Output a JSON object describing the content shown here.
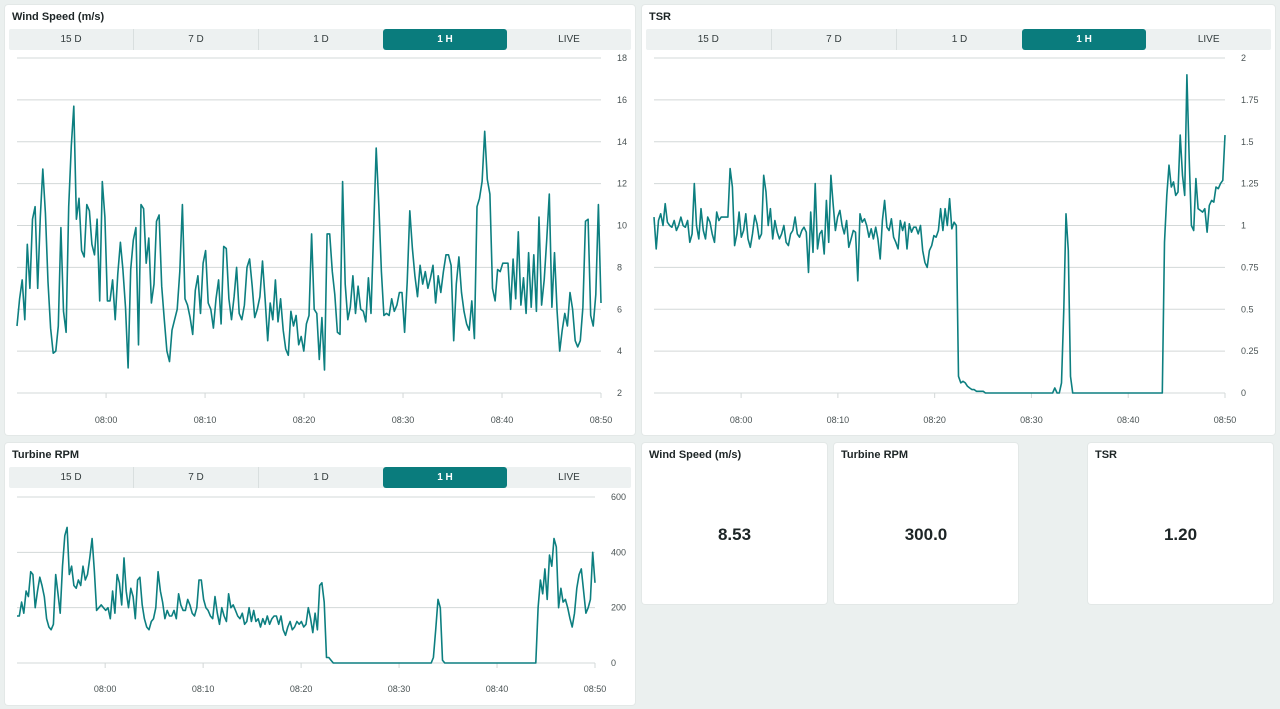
{
  "tabs": [
    "15 D",
    "7 D",
    "1 D",
    "1 H",
    "LIVE"
  ],
  "active_tab": "1 H",
  "charts": {
    "wind": {
      "title": "Wind Speed (m/s)",
      "chart_data": {
        "type": "line",
        "title": "Wind Speed (m/s)",
        "x_range_minutes": [
          -9,
          50
        ],
        "x_ticks": [
          "08:00",
          "08:10",
          "08:20",
          "08:30",
          "08:40",
          "08:50"
        ],
        "ylim": [
          2,
          18
        ],
        "y_ticks": [
          2,
          4,
          6,
          8,
          10,
          12,
          14,
          16,
          18
        ],
        "grid": true,
        "series": [
          {
            "values": [
              5.2,
              6.5,
              7.4,
              5.5,
              9.1,
              7.0,
              10.3,
              10.9,
              7.0,
              10.4,
              12.7,
              10.6,
              7.3,
              5.1,
              3.9,
              4.0,
              5.2,
              9.9,
              5.9,
              4.9,
              10.9,
              13.8,
              15.7,
              10.3,
              11.3,
              8.8,
              8.5,
              11.0,
              10.7,
              9.1,
              8.6,
              10.3,
              6.4,
              12.1,
              10.4,
              6.4,
              6.4,
              7.4,
              5.5,
              7.7,
              9.2,
              7.9,
              6.1,
              3.2,
              7.9,
              9.3,
              9.9,
              4.3,
              11.0,
              10.8,
              8.2,
              9.4,
              6.3,
              7.2,
              10.2,
              10.5,
              7.1,
              5.5,
              4.0,
              3.5,
              5.0,
              5.5,
              6.0,
              7.8,
              11.0,
              6.5,
              6.2,
              5.6,
              4.8,
              6.9,
              7.6,
              5.8,
              8.2,
              8.8,
              6.3,
              6.0,
              5.1,
              6.5,
              7.4,
              5.3,
              9.0,
              8.9,
              6.5,
              5.5,
              6.6,
              8.0,
              5.8,
              5.5,
              6.2,
              8.0,
              8.4,
              7.1,
              5.6,
              6.0,
              6.6,
              8.3,
              6.5,
              4.5,
              6.3,
              5.5,
              7.4,
              5.4,
              6.5,
              5.0,
              4.1,
              3.8,
              5.9,
              5.2,
              5.7,
              4.3,
              4.7,
              4.0,
              5.3,
              5.7,
              9.6,
              6.0,
              5.8,
              3.6,
              5.6,
              3.1,
              9.6,
              9.6,
              7.8,
              6.7,
              4.9,
              4.8,
              12.1,
              7.2,
              5.5,
              6.1,
              7.6,
              5.8,
              7.1,
              6.0,
              5.9,
              5.4,
              7.5,
              5.8,
              9.7,
              13.7,
              11.0,
              7.8,
              5.7,
              5.8,
              5.7,
              6.5,
              5.9,
              6.2,
              6.8,
              6.8,
              4.9,
              7.3,
              10.7,
              8.9,
              7.6,
              6.6,
              8.1,
              7.2,
              7.8,
              7.0,
              7.5,
              8.1,
              6.3,
              7.6,
              6.8,
              7.8,
              8.6,
              8.6,
              8.1,
              4.5,
              7.2,
              8.5,
              6.8,
              5.9,
              5.3,
              5.0,
              6.4,
              4.6,
              10.9,
              11.3,
              12.1,
              14.5,
              12.2,
              11.5,
              7.0,
              6.4,
              7.9,
              7.8,
              8.2,
              8.2,
              8.2,
              6.0,
              8.4,
              6.5,
              9.7,
              6.2,
              7.5,
              5.8,
              8.7,
              6.1,
              8.6,
              5.9,
              10.4,
              6.2,
              7.4,
              9.3,
              11.5,
              6.1,
              8.7,
              5.9,
              4.0,
              5.0,
              5.8,
              5.2,
              6.8,
              6.0,
              4.5,
              4.2,
              4.5,
              6.1,
              10.2,
              10.3,
              5.7,
              5.2,
              6.7,
              11.0,
              6.3
            ]
          }
        ]
      }
    },
    "tsr": {
      "title": "TSR",
      "chart_data": {
        "type": "line",
        "title": "TSR",
        "x_range_minutes": [
          -9,
          50
        ],
        "x_ticks": [
          "08:00",
          "08:10",
          "08:20",
          "08:30",
          "08:40",
          "08:50"
        ],
        "ylim": [
          0,
          2
        ],
        "y_ticks": [
          "0",
          "0.25",
          "0.5",
          "0.75",
          "1",
          "1.25",
          "1.5",
          "1.75",
          "2"
        ],
        "grid": true,
        "series": [
          {
            "values": [
              1.05,
              0.86,
              1.03,
              1.07,
              1.0,
              1.13,
              1.02,
              1.0,
              0.99,
              1.03,
              0.97,
              1.0,
              1.05,
              1.0,
              0.99,
              1.03,
              0.9,
              0.95,
              1.25,
              1.0,
              0.92,
              1.1,
              0.97,
              0.92,
              1.05,
              1.02,
              0.95,
              0.9,
              1.08,
              1.03,
              1.05,
              1.05,
              1.05,
              1.05,
              1.34,
              1.23,
              0.88,
              0.95,
              1.08,
              0.93,
              0.97,
              1.07,
              0.92,
              0.87,
              0.95,
              1.06,
              1.01,
              0.92,
              0.95,
              1.3,
              1.2,
              1.0,
              1.1,
              0.92,
              1.03,
              0.96,
              0.92,
              0.95,
              1.0,
              0.9,
              0.88,
              0.95,
              0.97,
              1.05,
              0.95,
              0.93,
              0.97,
              0.99,
              0.96,
              0.72,
              1.08,
              0.84,
              1.25,
              0.86,
              0.95,
              0.97,
              0.83,
              1.15,
              0.9,
              1.3,
              1.13,
              0.97,
              1.05,
              1.09,
              1.0,
              0.95,
              1.03,
              0.87,
              0.92,
              0.97,
              0.96,
              0.67,
              1.07,
              1.02,
              1.04,
              1.0,
              0.93,
              0.98,
              0.92,
              0.99,
              0.92,
              0.8,
              1.03,
              1.15,
              0.99,
              0.97,
              1.04,
              0.93,
              0.9,
              0.86,
              1.03,
              0.97,
              1.02,
              0.86,
              1.01,
              0.96,
              0.99,
              0.99,
              0.95,
              1.0,
              0.85,
              0.78,
              0.75,
              0.85,
              0.88,
              0.94,
              0.93,
              0.97,
              1.1,
              0.97,
              1.1,
              1.0,
              1.16,
              0.98,
              1.02,
              1.0,
              0.1,
              0.06,
              0.07,
              0.06,
              0.04,
              0.03,
              0.02,
              0.02,
              0.01,
              0.01,
              0.01,
              0.01,
              0.0,
              0.0,
              0.0,
              0.0,
              0.0,
              0.0,
              0.0,
              0.0,
              0.0,
              0.0,
              0.0,
              0.0,
              0.0,
              0.0,
              0.0,
              0.0,
              0.0,
              0.0,
              0.0,
              0.0,
              0.0,
              0.0,
              0.0,
              0.0,
              0.0,
              0.0,
              0.0,
              0.0,
              0.0,
              0.0,
              0.0,
              0.03,
              0.0,
              0.0,
              0.06,
              0.5,
              1.07,
              0.85,
              0.1,
              0.0,
              0.0,
              0.0,
              0.0,
              0.0,
              0.0,
              0.0,
              0.0,
              0.0,
              0.0,
              0.0,
              0.0,
              0.0,
              0.0,
              0.0,
              0.0,
              0.0,
              0.0,
              0.0,
              0.0,
              0.0,
              0.0,
              0.0,
              0.0,
              0.0,
              0.0,
              0.0,
              0.0,
              0.0,
              0.0,
              0.0,
              0.0,
              0.0,
              0.0,
              0.0,
              0.0,
              0.0,
              0.0,
              0.0,
              0.0,
              0.0,
              0.9,
              1.18,
              1.36,
              1.23,
              1.26,
              1.18,
              1.2,
              1.54,
              1.3,
              1.18,
              1.9,
              1.4,
              1.0,
              0.97,
              1.28,
              1.1,
              1.09,
              1.08,
              1.1,
              0.96,
              1.12,
              1.15,
              1.14,
              1.23,
              1.22,
              1.25,
              1.27,
              1.54
            ]
          }
        ]
      }
    },
    "rpm": {
      "title": "Turbine RPM",
      "chart_data": {
        "type": "line",
        "title": "Turbine RPM",
        "x_range_minutes": [
          -9,
          50
        ],
        "x_ticks": [
          "08:00",
          "08:10",
          "08:20",
          "08:30",
          "08:40",
          "08:50"
        ],
        "ylim": [
          0,
          600
        ],
        "y_ticks": [
          0,
          200,
          400,
          600
        ],
        "grid": true,
        "series": [
          {
            "values": [
              170,
              170,
              220,
              180,
              260,
              240,
              330,
              320,
              200,
              260,
              310,
              280,
              240,
              160,
              130,
              120,
              140,
              320,
              250,
              180,
              350,
              460,
              490,
              320,
              350,
              280,
              270,
              300,
              280,
              350,
              300,
              320,
              380,
              450,
              330,
              190,
              200,
              210,
              200,
              190,
              200,
              160,
              260,
              180,
              320,
              290,
              210,
              380,
              260,
              200,
              270,
              240,
              160,
              300,
              310,
              210,
              160,
              130,
              120,
              150,
              160,
              200,
              330,
              260,
              220,
              160,
              190,
              170,
              170,
              190,
              160,
              250,
              210,
              190,
              190,
              230,
              210,
              180,
              170,
              200,
              300,
              300,
              230,
              200,
              190,
              170,
              160,
              240,
              180,
              140,
              200,
              170,
              150,
              250,
              200,
              210,
              190,
              170,
              160,
              180,
              140,
              150,
              200,
              150,
              190,
              150,
              160,
              130,
              160,
              140,
              170,
              140,
              160,
              170,
              170,
              140,
              170,
              120,
              100,
              130,
              150,
              120,
              130,
              150,
              140,
              150,
              130,
              140,
              200,
              160,
              110,
              180,
              120,
              280,
              290,
              220,
              20,
              20,
              10,
              0,
              0,
              0,
              0,
              0,
              0,
              0,
              0,
              0,
              0,
              0,
              0,
              0,
              0,
              0,
              0,
              0,
              0,
              0,
              0,
              0,
              0,
              0,
              0,
              0,
              0,
              0,
              0,
              0,
              0,
              0,
              0,
              0,
              0,
              0,
              0,
              0,
              0,
              0,
              0,
              0,
              0,
              0,
              0,
              20,
              120,
              230,
              200,
              10,
              0,
              0,
              0,
              0,
              0,
              0,
              0,
              0,
              0,
              0,
              0,
              0,
              0,
              0,
              0,
              0,
              0,
              0,
              0,
              0,
              0,
              0,
              0,
              0,
              0,
              0,
              0,
              0,
              0,
              0,
              0,
              0,
              0,
              0,
              0,
              0,
              0,
              0,
              0,
              0,
              0,
              200,
              300,
              250,
              340,
              230,
              390,
              350,
              450,
              420,
              200,
              270,
              220,
              230,
              200,
              160,
              130,
              180,
              270,
              320,
              340,
              260,
              180,
              200,
              230,
              400,
              290
            ]
          }
        ]
      }
    }
  },
  "cards": [
    {
      "title": "Wind Speed (m/s)",
      "value": "8.53"
    },
    {
      "title": "Turbine RPM",
      "value": "300.0"
    },
    {
      "title": "TSR",
      "value": "1.20"
    }
  ]
}
